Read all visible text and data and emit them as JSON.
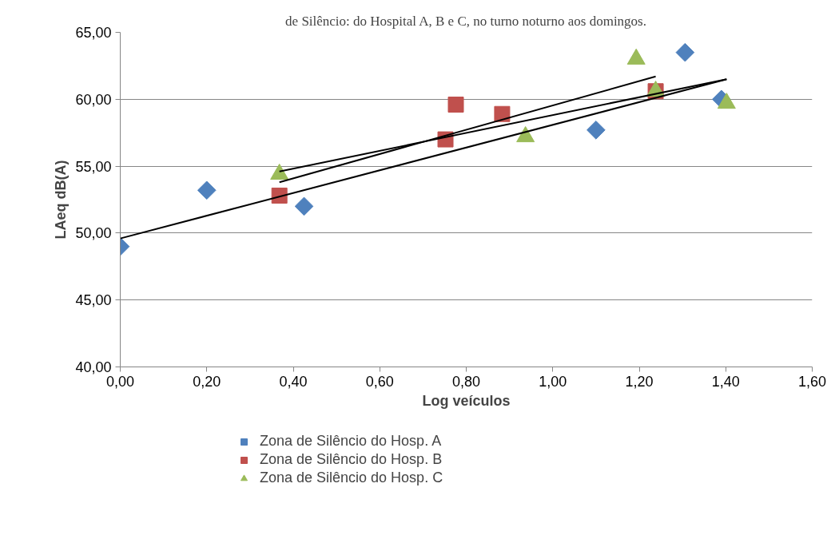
{
  "chart_data": {
    "type": "scatter",
    "title": "de Silêncio: do Hospital A, B e C, no turno noturno aos domingos.",
    "xlabel": "Log veículos",
    "ylabel": "LAeq dB(A)",
    "series": [
      {
        "name": "Zona de Silêncio do Hosp. A",
        "color": "#4f81bd",
        "marker": "diamond",
        "x": [
          0.0,
          0.2,
          0.425,
          1.1,
          1.306,
          1.39
        ],
        "values": [
          49.0,
          53.2,
          52.0,
          57.7,
          63.5,
          60.0
        ]
      },
      {
        "name": "Zona de Silêncio do Hosp. B",
        "color": "#c0504d",
        "marker": "square",
        "x": [
          0.368,
          0.752,
          0.776,
          0.883,
          1.238
        ],
        "values": [
          52.8,
          57.0,
          59.6,
          58.9,
          60.6
        ]
      },
      {
        "name": "Zona de Silêncio do Hosp. C",
        "color": "#9bbb59",
        "marker": "triangle",
        "x": [
          0.368,
          0.937,
          1.193,
          1.238,
          1.402
        ],
        "values": [
          54.4,
          57.2,
          63.0,
          60.6,
          59.7
        ]
      },
      {
        "type": "line",
        "color": "#000000",
        "x": [
          0.0,
          1.402
        ],
        "values": [
          49.6,
          61.5
        ]
      },
      {
        "type": "line",
        "color": "#000000",
        "x": [
          0.368,
          1.238
        ],
        "values": [
          53.8,
          61.7
        ]
      },
      {
        "type": "line",
        "color": "#000000",
        "x": [
          0.368,
          1.402
        ],
        "values": [
          54.6,
          61.5
        ]
      }
    ],
    "xlim": [
      0,
      1.6
    ],
    "ylim": [
      40,
      65
    ],
    "xticks": [
      {
        "value": 0,
        "label": "0,00"
      },
      {
        "value": 0.2,
        "label": "0,20"
      },
      {
        "value": 0.4,
        "label": "0,40"
      },
      {
        "value": 0.6,
        "label": "0,60"
      },
      {
        "value": 0.8,
        "label": "0,80"
      },
      {
        "value": 1.0,
        "label": "1,00"
      },
      {
        "value": 1.2,
        "label": "1,20"
      },
      {
        "value": 1.4,
        "label": "1,40"
      },
      {
        "value": 1.6,
        "label": "1,60"
      }
    ],
    "yticks": [
      {
        "value": 40,
        "label": "40,00"
      },
      {
        "value": 45,
        "label": "45,00"
      },
      {
        "value": 50,
        "label": "50,00"
      },
      {
        "value": 55,
        "label": "55,00"
      },
      {
        "value": 60,
        "label": "60,00"
      },
      {
        "value": 65,
        "label": "65,00"
      }
    ],
    "grid": "y",
    "legend": "bottom left"
  }
}
